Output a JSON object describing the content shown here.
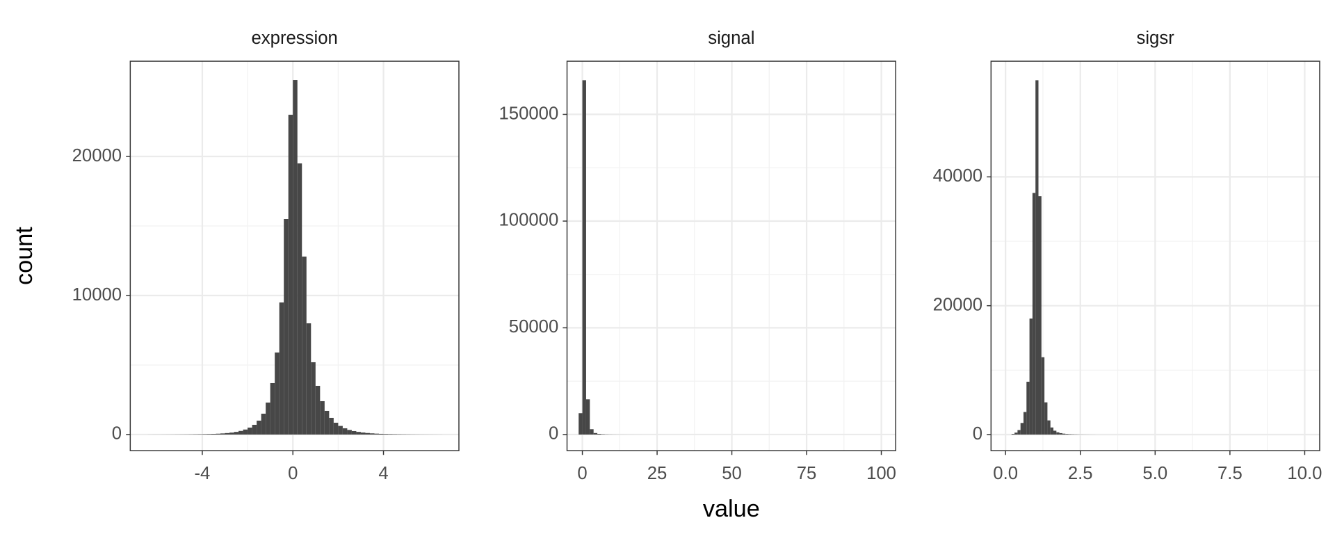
{
  "chart_data": [
    {
      "type": "histogram",
      "title": "expression",
      "ylabel": "count",
      "color": "#474747",
      "grid": true,
      "bins": [
        -6.4,
        -6.2,
        -6.0,
        -5.8,
        -5.6,
        -5.4,
        -5.2,
        -5.0,
        -4.8,
        -4.6,
        -4.4,
        -4.2,
        -4.0,
        -3.8,
        -3.6,
        -3.4,
        -3.2,
        -3.0,
        -2.8,
        -2.6,
        -2.4,
        -2.2,
        -2.0,
        -1.8,
        -1.6,
        -1.4,
        -1.2,
        -1.0,
        -0.8,
        -0.6,
        -0.4,
        -0.2,
        0.0,
        0.2,
        0.4,
        0.6,
        0.8,
        1.0,
        1.2,
        1.4,
        1.6,
        1.8,
        2.0,
        2.2,
        2.4,
        2.6,
        2.8,
        3.0,
        3.2,
        3.4,
        3.6,
        3.8,
        4.0,
        4.2,
        4.4,
        4.6,
        4.8,
        5.0,
        5.2,
        5.4,
        5.6,
        5.8,
        6.0,
        6.2,
        6.4,
        6.6
      ],
      "values": [
        2,
        3,
        3,
        4,
        5,
        6,
        8,
        10,
        12,
        15,
        19,
        24,
        30,
        38,
        48,
        60,
        80,
        105,
        140,
        190,
        260,
        360,
        500,
        700,
        1000,
        1500,
        2300,
        3700,
        5900,
        9500,
        15500,
        23000,
        25500,
        19500,
        12800,
        8000,
        5200,
        3500,
        2400,
        1700,
        1200,
        850,
        620,
        450,
        330,
        250,
        190,
        145,
        110,
        85,
        65,
        50,
        40,
        32,
        25,
        20,
        16,
        13,
        10,
        8,
        6,
        5,
        4,
        3,
        2
      ],
      "xlim": [
        -7.18,
        7.33
      ],
      "xticks": [
        -4,
        0,
        4
      ],
      "ylim": [
        -1160,
        26850
      ],
      "yticks": [
        0,
        10000,
        20000
      ]
    },
    {
      "type": "histogram",
      "title": "signal",
      "xlabel": "value",
      "color": "#474747",
      "grid": true,
      "bins": [
        -1.25,
        0,
        1.25,
        2.5,
        3.75,
        5,
        6.25,
        7.5,
        8.75,
        10,
        11.25,
        12.5,
        13.75,
        15,
        16.25,
        17.5,
        18.75,
        20
      ],
      "values": [
        10000,
        166000,
        16500,
        2500,
        700,
        300,
        150,
        80,
        50,
        30,
        20,
        14,
        10,
        7,
        5,
        4,
        3
      ],
      "xlim": [
        -5.13,
        104.8
      ],
      "xticks": [
        0,
        25,
        50,
        75,
        100
      ],
      "ylim": [
        -7560,
        174900
      ],
      "yticks": [
        0,
        50000,
        100000,
        150000
      ]
    },
    {
      "type": "histogram",
      "title": "sigsr",
      "color": "#474747",
      "grid": true,
      "bins": [
        0.2,
        0.3,
        0.4,
        0.5,
        0.6,
        0.7,
        0.8,
        0.9,
        1.0,
        1.1,
        1.2,
        1.3,
        1.4,
        1.5,
        1.6,
        1.7,
        1.8,
        1.9,
        2.0,
        2.1,
        2.2,
        2.3,
        2.4,
        2.5,
        2.6,
        2.7,
        2.8,
        2.9,
        3.0
      ],
      "values": [
        100,
        300,
        700,
        1800,
        3500,
        8200,
        18000,
        37500,
        55000,
        37000,
        12000,
        5000,
        2200,
        1100,
        600,
        350,
        220,
        140,
        90,
        60,
        40,
        28,
        20,
        14,
        10,
        7,
        5,
        3
      ],
      "xlim": [
        -0.485,
        10.5
      ],
      "xticks": [
        {
          "value": 0,
          "label": "0.0"
        },
        2.5,
        {
          "value": 5,
          "label": "5.0"
        },
        7.5,
        {
          "value": 10,
          "label": "10.0"
        }
      ],
      "ylim": [
        -2500,
        57950
      ],
      "yticks": [
        0,
        20000,
        40000
      ]
    }
  ]
}
